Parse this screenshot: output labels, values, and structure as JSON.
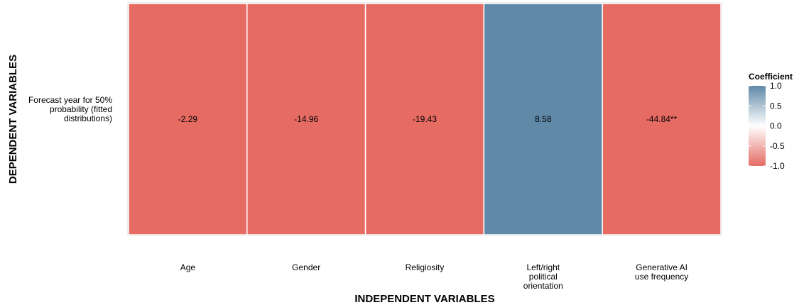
{
  "chart_data": {
    "type": "heatmap",
    "xlabel": "INDEPENDENT VARIABLES",
    "ylabel": "DEPENDENT VARIABLES",
    "columns": [
      [
        "Age"
      ],
      [
        "Gender"
      ],
      [
        "Religiosity"
      ],
      [
        "Left/right",
        "political",
        "orientation"
      ],
      [
        "Generative AI",
        "use frequency"
      ]
    ],
    "rows": [
      [
        "Forecast year for 50%",
        "probability (fitted",
        "distributions)"
      ]
    ],
    "labels": [
      [
        "-2.29",
        "-14.96",
        "-19.43",
        "8.58",
        "-44.84**"
      ]
    ],
    "values": [
      [
        -1.0,
        -1.0,
        -1.0,
        1.0,
        -1.0
      ]
    ],
    "legend": {
      "title": "Coefficient",
      "ticks": [
        "1.0",
        "0.5",
        "0.0",
        "-0.5",
        "-1.0"
      ],
      "range": [
        -1.0,
        1.0
      ]
    },
    "colors": {
      "negative": "#e56b63",
      "neutral": "#ffffff",
      "positive": "#5f89a7"
    }
  }
}
